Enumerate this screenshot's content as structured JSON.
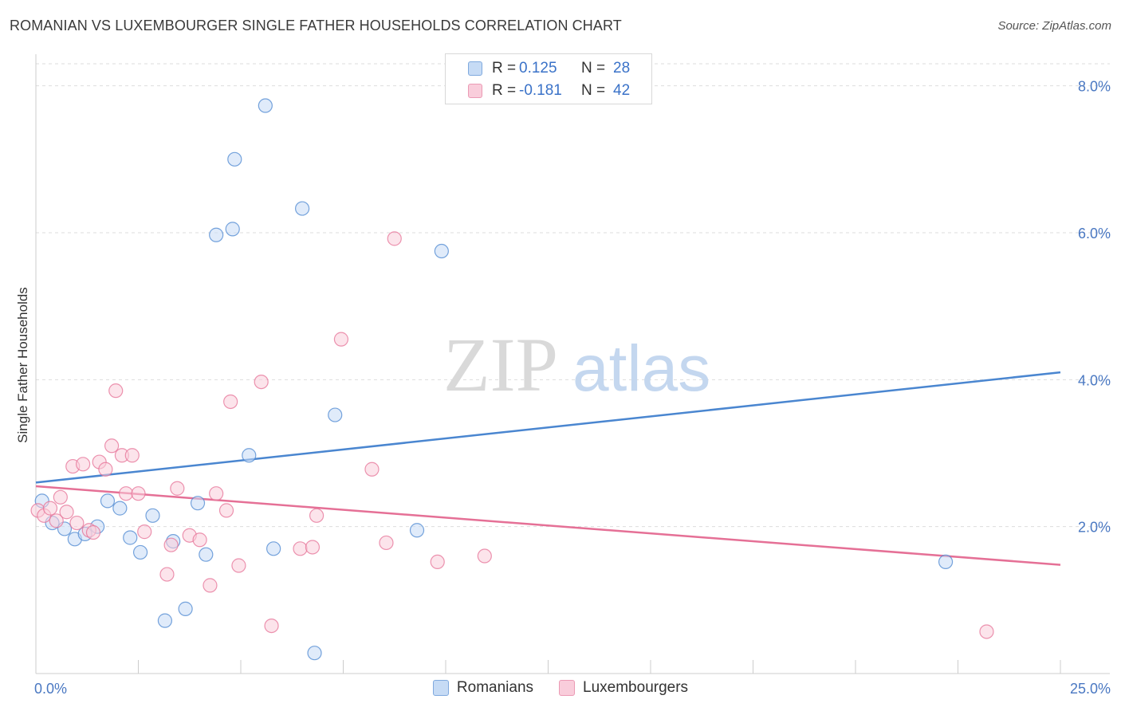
{
  "title": "ROMANIAN VS LUXEMBOURGER SINGLE FATHER HOUSEHOLDS CORRELATION CHART",
  "source": "Source: ZipAtlas.com",
  "watermark": {
    "zip": "ZIP",
    "atlas": "atlas"
  },
  "legend": {
    "rows": [
      {
        "r_label": "R =",
        "r_value": "0.125",
        "n_label": "N =",
        "n_value": "28",
        "color": "#a8c8f0"
      },
      {
        "r_label": "R =",
        "r_value": "-0.181",
        "n_label": "N =",
        "n_value": "42",
        "color": "#f5b8cc"
      }
    ]
  },
  "bottom_legend": [
    "Romanians",
    "Luxembourgers"
  ],
  "chart_data": {
    "type": "scatter",
    "title": "ROMANIAN VS LUXEMBOURGER SINGLE FATHER HOUSEHOLDS CORRELATION CHART",
    "xlabel": "",
    "ylabel": "Single Father Households",
    "xlim": [
      0,
      25
    ],
    "ylim": [
      0,
      8.3
    ],
    "x_tick_labels": [
      "0.0%",
      "25.0%"
    ],
    "y_ticks": [
      2,
      4,
      6,
      8
    ],
    "y_tick_labels": [
      "2.0%",
      "4.0%",
      "6.0%",
      "8.0%"
    ],
    "grid": true,
    "legend_position": "top-center",
    "series": [
      {
        "name": "Romanians",
        "color": "#4a86d0",
        "fill": "#c6dbf5",
        "trend": {
          "x": [
            0,
            25
          ],
          "y": [
            2.6,
            4.1
          ]
        },
        "points": [
          [
            0.15,
            2.35
          ],
          [
            0.4,
            2.05
          ],
          [
            0.7,
            1.97
          ],
          [
            0.95,
            1.83
          ],
          [
            1.2,
            1.9
          ],
          [
            1.5,
            2.0
          ],
          [
            1.75,
            2.35
          ],
          [
            2.05,
            2.25
          ],
          [
            2.3,
            1.85
          ],
          [
            2.55,
            1.65
          ],
          [
            2.85,
            2.15
          ],
          [
            3.15,
            0.72
          ],
          [
            3.35,
            1.8
          ],
          [
            3.65,
            0.88
          ],
          [
            3.95,
            2.32
          ],
          [
            4.15,
            1.62
          ],
          [
            4.4,
            5.97
          ],
          [
            4.8,
            6.05
          ],
          [
            4.85,
            7.0
          ],
          [
            5.2,
            2.97
          ],
          [
            5.6,
            7.73
          ],
          [
            5.8,
            1.7
          ],
          [
            6.5,
            6.33
          ],
          [
            6.8,
            0.28
          ],
          [
            7.3,
            3.52
          ],
          [
            9.3,
            1.95
          ],
          [
            9.9,
            5.75
          ],
          [
            22.2,
            1.52
          ]
        ]
      },
      {
        "name": "Luxembourgers",
        "color": "#e57096",
        "fill": "#f9cddb",
        "trend": {
          "x": [
            0,
            25
          ],
          "y": [
            2.55,
            1.48
          ]
        },
        "points": [
          [
            0.05,
            2.22
          ],
          [
            0.2,
            2.15
          ],
          [
            0.35,
            2.25
          ],
          [
            0.5,
            2.08
          ],
          [
            0.6,
            2.4
          ],
          [
            0.75,
            2.2
          ],
          [
            0.9,
            2.82
          ],
          [
            1.0,
            2.05
          ],
          [
            1.15,
            2.85
          ],
          [
            1.3,
            1.95
          ],
          [
            1.4,
            1.92
          ],
          [
            1.55,
            2.88
          ],
          [
            1.7,
            2.78
          ],
          [
            1.85,
            3.1
          ],
          [
            1.95,
            3.85
          ],
          [
            2.1,
            2.97
          ],
          [
            2.2,
            2.45
          ],
          [
            2.35,
            2.97
          ],
          [
            2.5,
            2.45
          ],
          [
            2.65,
            1.93
          ],
          [
            3.2,
            1.35
          ],
          [
            3.3,
            1.75
          ],
          [
            3.45,
            2.52
          ],
          [
            3.75,
            1.88
          ],
          [
            4.0,
            1.82
          ],
          [
            4.25,
            1.2
          ],
          [
            4.4,
            2.45
          ],
          [
            4.65,
            2.22
          ],
          [
            4.75,
            3.7
          ],
          [
            4.95,
            1.47
          ],
          [
            5.5,
            3.97
          ],
          [
            5.75,
            0.65
          ],
          [
            6.45,
            1.7
          ],
          [
            6.75,
            1.72
          ],
          [
            6.85,
            2.15
          ],
          [
            7.45,
            4.55
          ],
          [
            8.2,
            2.78
          ],
          [
            8.55,
            1.78
          ],
          [
            8.75,
            5.92
          ],
          [
            9.8,
            1.52
          ],
          [
            10.95,
            1.6
          ],
          [
            23.2,
            0.57
          ]
        ]
      }
    ]
  }
}
